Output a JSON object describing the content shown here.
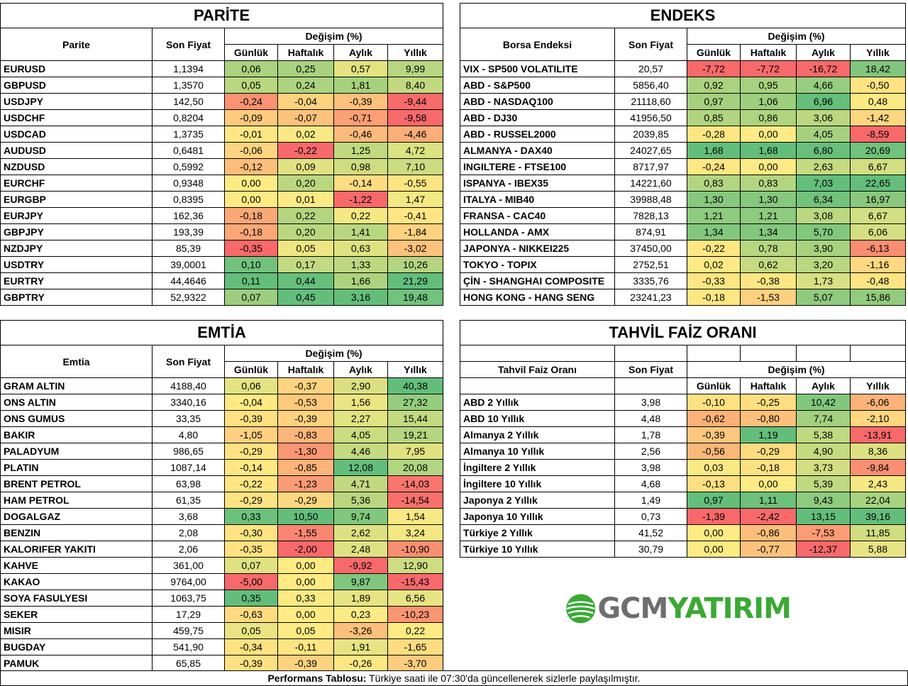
{
  "parite": {
    "title": "PARİTE",
    "col_name": "Parite",
    "col_price": "Son Fiyat",
    "col_change": "Değişim (%)",
    "col_daily": "Günlük",
    "col_weekly": "Haftalık",
    "col_monthly": "Aylık",
    "col_yearly": "Yıllık",
    "rows": [
      {
        "name": "EURUSD",
        "price": "1,1394",
        "d": "0,06",
        "w": "0,25",
        "m": "0,57",
        "y": "9,99"
      },
      {
        "name": "GBPUSD",
        "price": "1,3570",
        "d": "0,05",
        "w": "0,24",
        "m": "1,81",
        "y": "8,40"
      },
      {
        "name": "USDJPY",
        "price": "142,50",
        "d": "-0,24",
        "w": "-0,04",
        "m": "-0,39",
        "y": "-9,44"
      },
      {
        "name": "USDCHF",
        "price": "0,8204",
        "d": "-0,09",
        "w": "-0,07",
        "m": "-0,71",
        "y": "-9,58"
      },
      {
        "name": "USDCAD",
        "price": "1,3735",
        "d": "-0,01",
        "w": "0,02",
        "m": "-0,46",
        "y": "-4,46"
      },
      {
        "name": "AUDUSD",
        "price": "0,6481",
        "d": "-0,06",
        "w": "-0,22",
        "m": "1,25",
        "y": "4,72"
      },
      {
        "name": "NZDUSD",
        "price": "0,5992",
        "d": "-0,12",
        "w": "0,09",
        "m": "0,98",
        "y": "7,10"
      },
      {
        "name": "EURCHF",
        "price": "0,9348",
        "d": "0,00",
        "w": "0,20",
        "m": "-0,14",
        "y": "-0,55"
      },
      {
        "name": "EURGBP",
        "price": "0,8395",
        "d": "0,00",
        "w": "0,01",
        "m": "-1,22",
        "y": "1,47"
      },
      {
        "name": "EURJPY",
        "price": "162,36",
        "d": "-0,18",
        "w": "0,22",
        "m": "0,22",
        "y": "-0,41"
      },
      {
        "name": "GBPJPY",
        "price": "193,39",
        "d": "-0,18",
        "w": "0,20",
        "m": "1,41",
        "y": "-1,84"
      },
      {
        "name": "NZDJPY",
        "price": "85,39",
        "d": "-0,35",
        "w": "0,05",
        "m": "0,63",
        "y": "-3,02"
      },
      {
        "name": "USDTRY",
        "price": "39,0001",
        "d": "0,10",
        "w": "0,17",
        "m": "1,33",
        "y": "10,26"
      },
      {
        "name": "EURTRY",
        "price": "44,4646",
        "d": "0,11",
        "w": "0,44",
        "m": "1,66",
        "y": "21,29"
      },
      {
        "name": "GBPTRY",
        "price": "52,9322",
        "d": "0,07",
        "w": "0,45",
        "m": "3,16",
        "y": "19,48"
      }
    ]
  },
  "endeks": {
    "title": "ENDEKS",
    "col_name": "Borsa Endeksi",
    "col_price": "Son Fiyat",
    "col_change": "Değişim (%)",
    "col_daily": "Günlük",
    "col_weekly": "Haftalık",
    "col_monthly": "Aylık",
    "col_yearly": "Yıllık",
    "rows": [
      {
        "name": "VIX  - SP500 VOLATILITE",
        "price": "20,57",
        "d": "-7,72",
        "w": "-7,72",
        "m": "-16,72",
        "y": "18,42"
      },
      {
        "name": "ABD - S&P500",
        "price": "5856,40",
        "d": "0,92",
        "w": "0,95",
        "m": "4,66",
        "y": "-0,50"
      },
      {
        "name": "ABD - NASDAQ100",
        "price": "21118,60",
        "d": "0,97",
        "w": "1,06",
        "m": "6,96",
        "y": "0,48"
      },
      {
        "name": "ABD - DJ30",
        "price": "41956,50",
        "d": "0,85",
        "w": "0,86",
        "m": "3,06",
        "y": "-1,42"
      },
      {
        "name": "ABD - RUSSEL2000",
        "price": "2039,85",
        "d": "-0,28",
        "w": "0,00",
        "m": "4,05",
        "y": "-8,59"
      },
      {
        "name": "ALMANYA - DAX40",
        "price": "24027,65",
        "d": "1,68",
        "w": "1,68",
        "m": "6,80",
        "y": "20,69"
      },
      {
        "name": "INGILTERE - FTSE100",
        "price": "8717,97",
        "d": "-0,24",
        "w": "0,00",
        "m": "2,63",
        "y": "6,67"
      },
      {
        "name": "ISPANYA - IBEX35",
        "price": "14221,60",
        "d": "0,83",
        "w": "0,83",
        "m": "7,03",
        "y": "22,65"
      },
      {
        "name": "ITALYA - MIB40",
        "price": "39988,48",
        "d": "1,30",
        "w": "1,30",
        "m": "6,34",
        "y": "16,97"
      },
      {
        "name": "FRANSA - CAC40",
        "price": "7828,13",
        "d": "1,21",
        "w": "1,21",
        "m": "3,08",
        "y": "6,67"
      },
      {
        "name": "HOLLANDA - AMX",
        "price": "874,91",
        "d": "1,34",
        "w": "1,34",
        "m": "5,70",
        "y": "6,06"
      },
      {
        "name": "JAPONYA - NIKKEI225",
        "price": "37450,00",
        "d": "-0,22",
        "w": "0,78",
        "m": "3,90",
        "y": "-6,13"
      },
      {
        "name": "TOKYO - TOPIX",
        "price": "2752,51",
        "d": "0,02",
        "w": "0,62",
        "m": "3,20",
        "y": "-1,16"
      },
      {
        "name": "ÇİN - SHANGHAI COMPOSITE",
        "price": "3335,76",
        "d": "-0,33",
        "w": "-0,38",
        "m": "1,73",
        "y": "-0,48"
      },
      {
        "name": "HONG KONG - HANG SENG",
        "price": "23241,23",
        "d": "-0,18",
        "w": "-1,53",
        "m": "5,07",
        "y": "15,86"
      }
    ]
  },
  "emtia": {
    "title": "EMTİA",
    "col_name": "Emtia",
    "col_price": "Son Fiyat",
    "col_change": "Değişim (%)",
    "col_daily": "Günlük",
    "col_weekly": "Haftalık",
    "col_monthly": "Aylık",
    "col_yearly": "Yıllık",
    "rows": [
      {
        "name": "GRAM ALTIN",
        "price": "4188,40",
        "d": "0,06",
        "w": "-0,37",
        "m": "2,90",
        "y": "40,38"
      },
      {
        "name": "ONS ALTIN",
        "price": "3340,16",
        "d": "-0,04",
        "w": "-0,53",
        "m": "1,56",
        "y": "27,32"
      },
      {
        "name": "ONS GUMUS",
        "price": "33,35",
        "d": "-0,39",
        "w": "-0,39",
        "m": "2,27",
        "y": "15,44"
      },
      {
        "name": "BAKIR",
        "price": "4,80",
        "d": "-1,05",
        "w": "-0,83",
        "m": "4,05",
        "y": "19,21"
      },
      {
        "name": "PALADYUM",
        "price": "986,65",
        "d": "-0,29",
        "w": "-1,30",
        "m": "4,46",
        "y": "7,95"
      },
      {
        "name": "PLATIN",
        "price": "1087,14",
        "d": "-0,14",
        "w": "-0,85",
        "m": "12,08",
        "y": "20,08"
      },
      {
        "name": "BRENT PETROL",
        "price": "63,98",
        "d": "-0,22",
        "w": "-1,23",
        "m": "4,71",
        "y": "-14,03"
      },
      {
        "name": "HAM PETROL",
        "price": "61,35",
        "d": "-0,29",
        "w": "-0,29",
        "m": "5,36",
        "y": "-14,54"
      },
      {
        "name": "DOGALGAZ",
        "price": "3,68",
        "d": "0,33",
        "w": "10,50",
        "m": "9,74",
        "y": "1,54"
      },
      {
        "name": "BENZIN",
        "price": "2,08",
        "d": "-0,30",
        "w": "-1,55",
        "m": "2,62",
        "y": "3,24"
      },
      {
        "name": "KALORIFER YAKITI",
        "price": "2,06",
        "d": "-0,35",
        "w": "-2,00",
        "m": "2,48",
        "y": "-10,90"
      },
      {
        "name": "KAHVE",
        "price": "361,00",
        "d": "0,07",
        "w": "0,00",
        "m": "-9,92",
        "y": "12,90"
      },
      {
        "name": "KAKAO",
        "price": "9764,00",
        "d": "-5,00",
        "w": "0,00",
        "m": "9,87",
        "y": "-15,43"
      },
      {
        "name": "SOYA FASULYESI",
        "price": "1063,75",
        "d": "0,35",
        "w": "0,33",
        "m": "1,89",
        "y": "6,56"
      },
      {
        "name": "SEKER",
        "price": "17,29",
        "d": "-0,63",
        "w": "0,00",
        "m": "0,23",
        "y": "-10,23"
      },
      {
        "name": "MISIR",
        "price": "459,75",
        "d": "0,05",
        "w": "0,05",
        "m": "-3,26",
        "y": "0,22"
      },
      {
        "name": "BUGDAY",
        "price": "541,90",
        "d": "-0,34",
        "w": "-0,11",
        "m": "1,91",
        "y": "-1,65"
      },
      {
        "name": "PAMUK",
        "price": "65,85",
        "d": "-0,39",
        "w": "-0,39",
        "m": "-0,26",
        "y": "-3,70"
      }
    ]
  },
  "tahvil": {
    "title": "TAHVİL FAİZ ORANI",
    "col_name": "Tahvil Faiz Oranı",
    "col_price": "Son Fiyat",
    "col_change": "Değişim (%)",
    "col_daily": "Günlük",
    "col_weekly": "Haftalık",
    "col_monthly": "Aylık",
    "col_yearly": "Yıllık",
    "rows": [
      {
        "name": "ABD 2 Yıllık",
        "price": "3,98",
        "d": "-0,10",
        "w": "-0,25",
        "m": "10,42",
        "y": "-6,06"
      },
      {
        "name": "ABD 10 Yıllık",
        "price": "4,48",
        "d": "-0,62",
        "w": "-0,80",
        "m": "7,74",
        "y": "-2,10"
      },
      {
        "name": "Almanya 2 Yıllık",
        "price": "1,78",
        "d": "-0,39",
        "w": "1,19",
        "m": "5,38",
        "y": "-13,91"
      },
      {
        "name": "Almanya 10 Yıllık",
        "price": "2,56",
        "d": "-0,56",
        "w": "-0,29",
        "m": "4,90",
        "y": "8,36"
      },
      {
        "name": "İngiltere 2 Yıllık",
        "price": "3,98",
        "d": "0,03",
        "w": "-0,18",
        "m": "3,73",
        "y": "-9,84"
      },
      {
        "name": "İngiltere 10 Yıllık",
        "price": "4,68",
        "d": "-0,13",
        "w": "0,00",
        "m": "5,39",
        "y": "2,43"
      },
      {
        "name": "Japonya 2 Yıllık",
        "price": "1,49",
        "d": "0,97",
        "w": "1,11",
        "m": "9,43",
        "y": "22,04"
      },
      {
        "name": "Japonya 10 Yıllık",
        "price": "0,73",
        "d": "-1,39",
        "w": "-2,42",
        "m": "13,15",
        "y": "39,16"
      },
      {
        "name": "Türkiye 2 Yıllık",
        "price": "41,52",
        "d": "0,00",
        "w": "-0,86",
        "m": "-7,53",
        "y": "11,85"
      },
      {
        "name": "Türkiye 10 Yıllık",
        "price": "30,79",
        "d": "0,00",
        "w": "-0,77",
        "m": "-12,37",
        "y": "5,88"
      }
    ]
  },
  "logo": {
    "gcm": "GCM",
    "yatirim": "YATIRIM"
  },
  "footer": {
    "label": "Performans Tablosu:",
    "text": " Türkiye saati ile 07:30'da güncellenerek sizlerle paylaşılmıştır."
  },
  "colors": {
    "red": "#f8696b",
    "yellow": "#ffeb84",
    "green": "#63be7b",
    "logo_grey": "#6e6e6e",
    "logo_green": "#3aa935"
  }
}
